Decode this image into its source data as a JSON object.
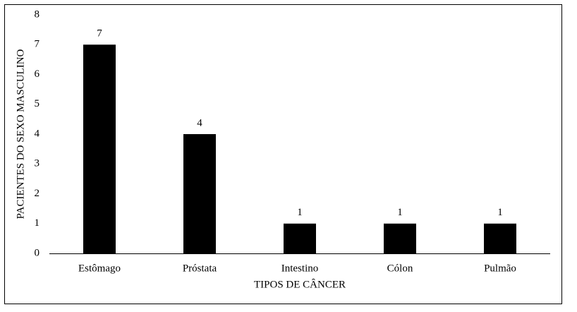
{
  "chart_data": {
    "type": "bar",
    "categories": [
      "Estômago",
      "Próstata",
      "Intestino",
      "Cólon",
      "Pulmão"
    ],
    "values": [
      7,
      4,
      1,
      1,
      1
    ],
    "color": "#000000",
    "x_label": "TIPOS DE CÂNCER",
    "y_label": "PACIENTES DO SEXO MASCULINO",
    "ylim": [
      0,
      8
    ],
    "yticks": [
      0,
      1,
      2,
      3,
      4,
      5,
      6,
      7,
      8
    ],
    "grid": false,
    "data_labels": true
  }
}
